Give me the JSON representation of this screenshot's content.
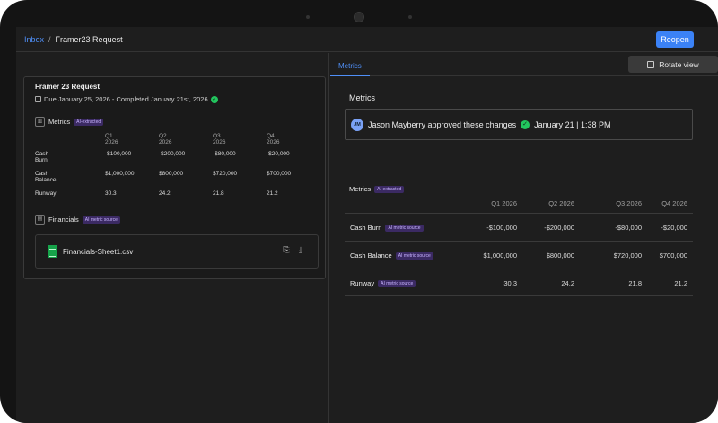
{
  "header": {
    "breadcrumb": {
      "inbox": "Inbox",
      "separator": "/",
      "current": "Framer23 Request"
    },
    "reopen_label": "Reopen"
  },
  "request_card": {
    "title": "Framer 23 Request",
    "due": "Due January 25, 2026 - Completed January 21st, 2026",
    "metrics_section": {
      "label": "Metrics",
      "badge": "AI-extracted",
      "columns": [
        "Q1 2026",
        "Q2 2026",
        "Q3 2026",
        "Q4 2026"
      ],
      "rows": [
        {
          "label": "Cash Burn",
          "values": [
            "-$100,000",
            "-$200,000",
            "-$80,000",
            "-$20,000"
          ]
        },
        {
          "label": "Cash Balance",
          "values": [
            "$1,000,000",
            "$800,000",
            "$720,000",
            "$700,000"
          ]
        },
        {
          "label": "Runway",
          "values": [
            "30.3",
            "24.2",
            "21.8",
            "21.2"
          ]
        }
      ]
    },
    "financials_section": {
      "label": "Financials",
      "badge": "AI metric source",
      "file_name": "Financials-Sheet1.csv"
    }
  },
  "right_panel": {
    "tab_label": "Metrics",
    "rotate_label": "Rotate view",
    "title": "Metrics",
    "approval": {
      "initials": "JM",
      "text": "Jason Mayberry approved these changes",
      "time": "January 21 | 1:38 PM"
    },
    "table": {
      "label": "Metrics",
      "badge": "AI-extracted",
      "row_badge": "AI metric source",
      "columns": [
        "Q1 2026",
        "Q2 2026",
        "Q3 2026",
        "Q4 2026"
      ],
      "rows": [
        {
          "label": "Cash Burn",
          "values": [
            "-$100,000",
            "-$200,000",
            "-$80,000",
            "-$20,000"
          ]
        },
        {
          "label": "Cash Balance",
          "values": [
            "$1,000,000",
            "$800,000",
            "$720,000",
            "$700,000"
          ]
        },
        {
          "label": "Runway",
          "values": [
            "30.3",
            "24.2",
            "21.8",
            "21.2"
          ]
        }
      ]
    }
  }
}
